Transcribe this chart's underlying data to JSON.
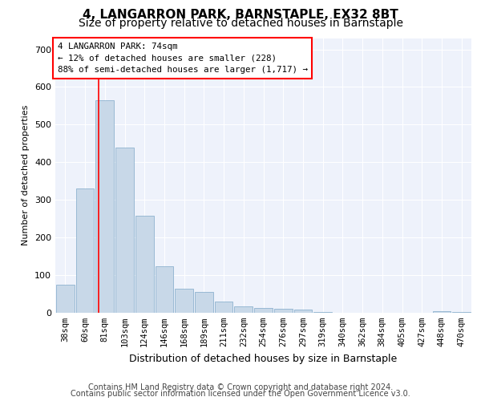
{
  "title1": "4, LANGARRON PARK, BARNSTAPLE, EX32 8BT",
  "title2": "Size of property relative to detached houses in Barnstaple",
  "xlabel": "Distribution of detached houses by size in Barnstaple",
  "ylabel": "Number of detached properties",
  "categories": [
    "38sqm",
    "60sqm",
    "81sqm",
    "103sqm",
    "124sqm",
    "146sqm",
    "168sqm",
    "189sqm",
    "211sqm",
    "232sqm",
    "254sqm",
    "276sqm",
    "297sqm",
    "319sqm",
    "340sqm",
    "362sqm",
    "384sqm",
    "405sqm",
    "427sqm",
    "448sqm",
    "470sqm"
  ],
  "values": [
    75,
    330,
    565,
    440,
    258,
    123,
    65,
    55,
    30,
    18,
    12,
    10,
    8,
    2,
    0,
    0,
    0,
    0,
    0,
    5,
    3
  ],
  "bar_color": "#c8d8e8",
  "bar_edge_color": "#7fa8c8",
  "annotation_box_text": "4 LANGARRON PARK: 74sqm\n← 12% of detached houses are smaller (228)\n88% of semi-detached houses are larger (1,717) →",
  "annotation_box_color": "white",
  "annotation_box_edge_color": "red",
  "vline_color": "red",
  "ylim": [
    0,
    730
  ],
  "yticks": [
    0,
    100,
    200,
    300,
    400,
    500,
    600,
    700
  ],
  "footer_line1": "Contains HM Land Registry data © Crown copyright and database right 2024.",
  "footer_line2": "Contains public sector information licensed under the Open Government Licence v3.0.",
  "background_color": "#eef2fb",
  "grid_color": "#ffffff",
  "title1_fontsize": 11,
  "title2_fontsize": 10,
  "xlabel_fontsize": 9,
  "ylabel_fontsize": 8,
  "footer_fontsize": 7
}
